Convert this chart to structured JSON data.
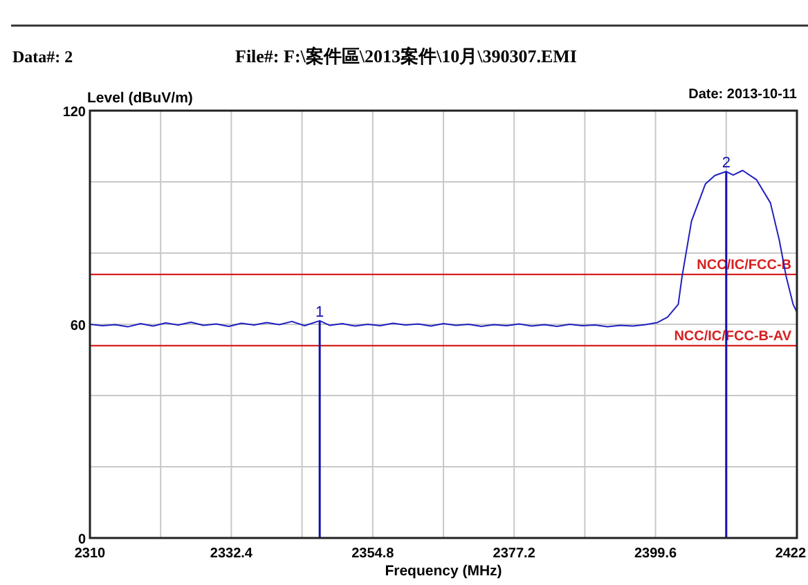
{
  "chart_data": {
    "type": "line",
    "xlabel": "Frequency (MHz)",
    "ylabel": "Level (dBuV/m)",
    "annotations": [
      "Data#: 2",
      "File#: F:\\案件區\\2013案件\\10月\\390307.EMI",
      "Date: 2013-10-11",
      {
        "text": "1",
        "x": 2346.4,
        "y": 61
      },
      {
        "text": "2",
        "x": 2410.8,
        "y": 102.9
      }
    ],
    "xlim": [
      2310,
      2422
    ],
    "ylim": [
      0,
      120
    ],
    "xticks": [
      2310,
      {
        "value": 2321.2,
        "label": null
      },
      2332.4,
      {
        "value": 2343.6,
        "label": null
      },
      2354.8,
      {
        "value": 2366,
        "label": null
      },
      2377.2,
      {
        "value": 2388.4,
        "label": null
      },
      2399.6,
      {
        "value": 2410.8,
        "label": null
      },
      2422
    ],
    "yticks": [
      0,
      {
        "value": 20,
        "label": null
      },
      {
        "value": 40,
        "label": null
      },
      60,
      {
        "value": 80,
        "label": null
      },
      {
        "value": 100,
        "label": null
      },
      120
    ],
    "grid": true,
    "marker": "none",
    "line_style": "solid",
    "ref_lines": [
      {
        "axis": "y",
        "value": 74,
        "label": "NCC/IC/FCC-B",
        "color": "#d62020"
      },
      {
        "axis": "y",
        "value": 54,
        "label": "NCC/IC/FCC-B-AV",
        "color": "#d62020"
      }
    ],
    "series": [
      {
        "type": "bar",
        "color": "#1010b0",
        "x": [
          2346.4,
          2410.8
        ],
        "values": [
          61,
          102.9
        ]
      },
      {
        "color": "#2020c0",
        "x": [
          2310,
          2312,
          2314,
          2316,
          2318,
          2320,
          2322,
          2324,
          2326,
          2328,
          2330,
          2332,
          2334,
          2336,
          2338,
          2340,
          2342,
          2344,
          2346.4,
          2348,
          2350,
          2352,
          2354,
          2356,
          2358,
          2360,
          2362,
          2364,
          2366,
          2368,
          2370,
          2372,
          2374,
          2376,
          2378,
          2380,
          2382,
          2384,
          2386,
          2388,
          2390,
          2392,
          2394,
          2396,
          2398,
          2399.9,
          2401.5,
          2403.2,
          2403.8,
          2405.3,
          2407.5,
          2409,
          2410.8,
          2411.9,
          2413.4,
          2415.6,
          2417.8,
          2419.2,
          2420.3,
          2421.4,
          2422
        ],
        "values": [
          60.0,
          59.6,
          59.9,
          59.3,
          60.2,
          59.5,
          60.4,
          59.8,
          60.6,
          59.7,
          60.1,
          59.4,
          60.3,
          59.8,
          60.5,
          59.9,
          60.8,
          59.6,
          61.0,
          59.7,
          60.2,
          59.5,
          60.0,
          59.6,
          60.3,
          59.8,
          60.1,
          59.5,
          60.2,
          59.7,
          60.0,
          59.4,
          59.9,
          59.6,
          60.1,
          59.5,
          59.9,
          59.4,
          60.0,
          59.6,
          59.8,
          59.3,
          59.7,
          59.5,
          59.9,
          60.5,
          62.0,
          65.6,
          73.4,
          89,
          99.4,
          101.8,
          102.9,
          101.9,
          103.2,
          100.6,
          94.1,
          83.7,
          73.4,
          65.6,
          63.4
        ]
      }
    ]
  }
}
